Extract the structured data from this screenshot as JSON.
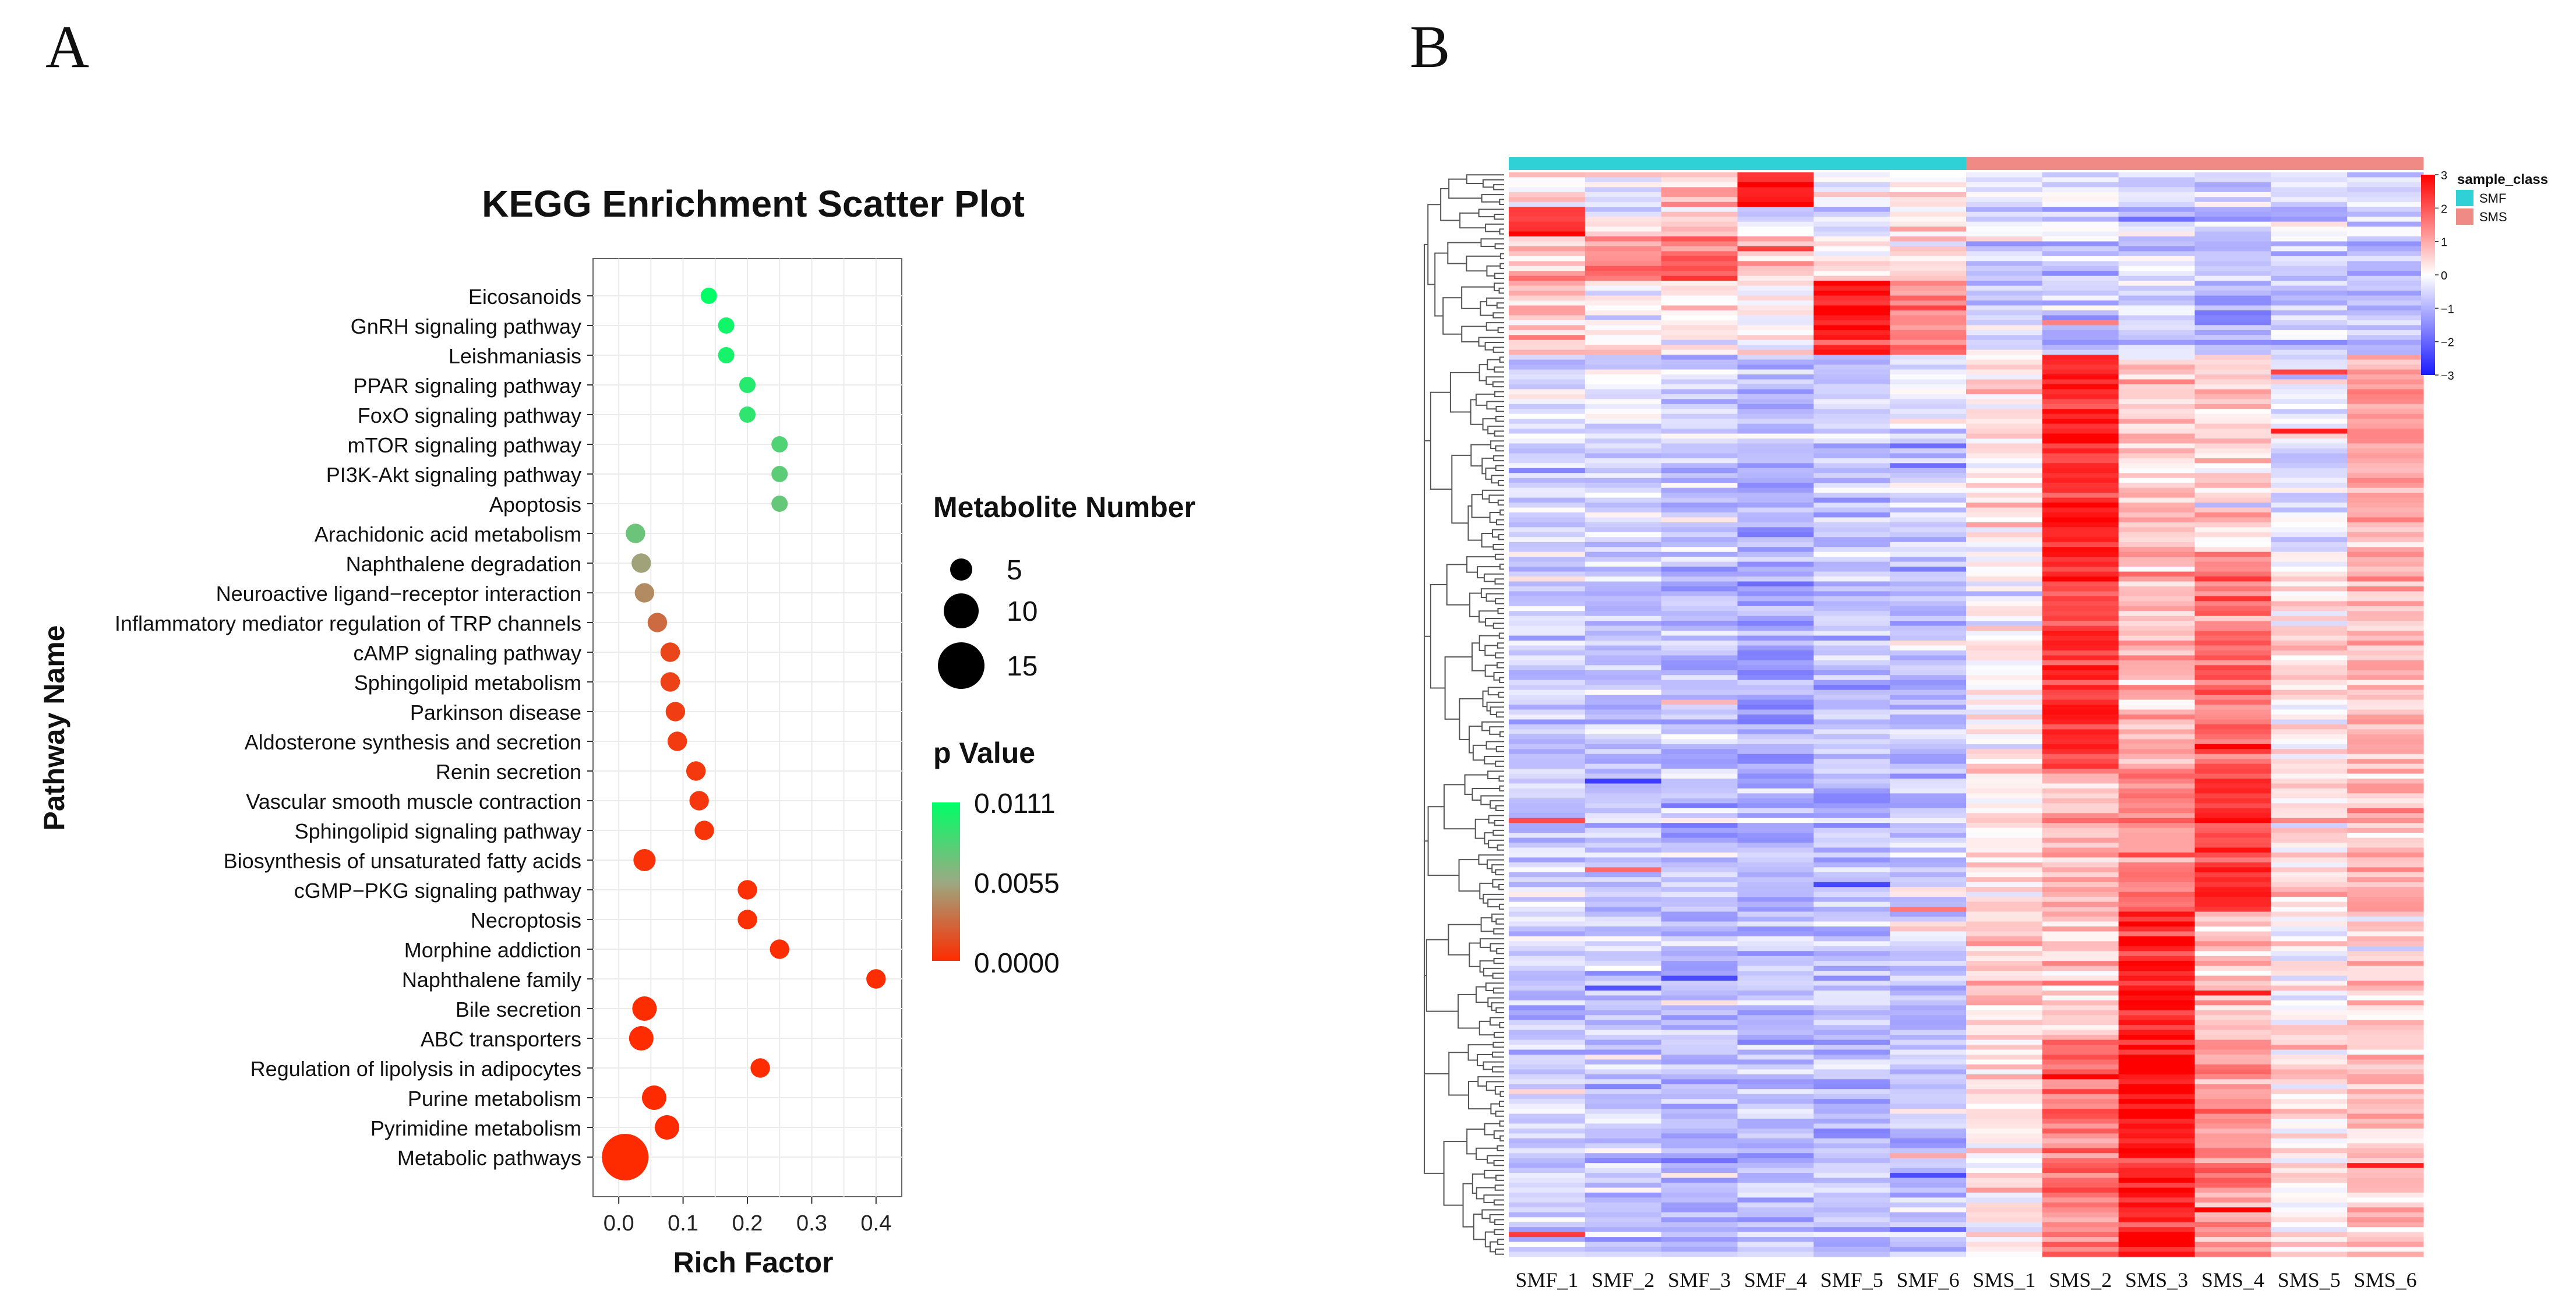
{
  "chart_data": [
    {
      "type": "scatter",
      "panel_label": "A",
      "title": "KEGG Enrichment Scatter Plot",
      "xlabel": "Rich Factor",
      "ylabel": "Pathway Name",
      "xlim": [
        -0.04,
        0.44
      ],
      "x_ticks": [
        "0.0",
        "0.1",
        "0.2",
        "0.3",
        "0.4"
      ],
      "x_tick_values": [
        0.0,
        0.1,
        0.2,
        0.3,
        0.4
      ],
      "grid": true,
      "points": [
        {
          "pathway": "Eicosanoids",
          "rich_factor": 0.14,
          "p_value": 0.0111,
          "count": 2
        },
        {
          "pathway": "GnRH signaling pathway",
          "rich_factor": 0.167,
          "p_value": 0.0105,
          "count": 2
        },
        {
          "pathway": "Leishmaniasis",
          "rich_factor": 0.167,
          "p_value": 0.0103,
          "count": 2
        },
        {
          "pathway": "PPAR signaling pathway",
          "rich_factor": 0.2,
          "p_value": 0.0098,
          "count": 2
        },
        {
          "pathway": "FoxO signaling pathway",
          "rich_factor": 0.2,
          "p_value": 0.0094,
          "count": 2
        },
        {
          "pathway": "mTOR signaling pathway",
          "rich_factor": 0.25,
          "p_value": 0.0082,
          "count": 2
        },
        {
          "pathway": "PI3K-Akt signaling pathway",
          "rich_factor": 0.25,
          "p_value": 0.0078,
          "count": 2
        },
        {
          "pathway": "Apoptosis",
          "rich_factor": 0.25,
          "p_value": 0.0075,
          "count": 2
        },
        {
          "pathway": "Arachidonic acid metabolism",
          "rich_factor": 0.026,
          "p_value": 0.0072,
          "count": 3
        },
        {
          "pathway": "Naphthalene degradation",
          "rich_factor": 0.035,
          "p_value": 0.0052,
          "count": 3
        },
        {
          "pathway": "Neuroactive ligand−receptor interaction",
          "rich_factor": 0.04,
          "p_value": 0.0042,
          "count": 3
        },
        {
          "pathway": "Inflammatory mediator regulation of TRP channels",
          "rich_factor": 0.06,
          "p_value": 0.0028,
          "count": 3
        },
        {
          "pathway": "cAMP signaling pathway",
          "rich_factor": 0.08,
          "p_value": 0.0012,
          "count": 3
        },
        {
          "pathway": "Sphingolipid metabolism",
          "rich_factor": 0.08,
          "p_value": 0.001,
          "count": 3
        },
        {
          "pathway": "Parkinson disease",
          "rich_factor": 0.088,
          "p_value": 0.0008,
          "count": 3
        },
        {
          "pathway": "Aldosterone synthesis and secretion",
          "rich_factor": 0.091,
          "p_value": 0.0007,
          "count": 3
        },
        {
          "pathway": "Renin secretion",
          "rich_factor": 0.12,
          "p_value": 0.0006,
          "count": 3
        },
        {
          "pathway": "Vascular smooth muscle contraction",
          "rich_factor": 0.125,
          "p_value": 0.0005,
          "count": 3
        },
        {
          "pathway": "Sphingolipid signaling pathway",
          "rich_factor": 0.133,
          "p_value": 0.0004,
          "count": 3
        },
        {
          "pathway": "Biosynthesis of unsaturated fatty acids",
          "rich_factor": 0.04,
          "p_value": 0.0003,
          "count": 4
        },
        {
          "pathway": "cGMP−PKG signaling pathway",
          "rich_factor": 0.2,
          "p_value": 0.0002,
          "count": 3
        },
        {
          "pathway": "Necroptosis",
          "rich_factor": 0.2,
          "p_value": 0.0002,
          "count": 3
        },
        {
          "pathway": "Morphine addiction",
          "rich_factor": 0.25,
          "p_value": 0.0001,
          "count": 3
        },
        {
          "pathway": "Naphthalene family",
          "rich_factor": 0.4,
          "p_value": 0.0001,
          "count": 3
        },
        {
          "pathway": "Bile secretion",
          "rich_factor": 0.04,
          "p_value": 0.0001,
          "count": 5
        },
        {
          "pathway": "ABC transporters",
          "rich_factor": 0.035,
          "p_value": 5e-05,
          "count": 5
        },
        {
          "pathway": "Regulation of lipolysis in adipocytes",
          "rich_factor": 0.22,
          "p_value": 5e-05,
          "count": 3
        },
        {
          "pathway": "Purine metabolism",
          "rich_factor": 0.055,
          "p_value": 2e-05,
          "count": 5
        },
        {
          "pathway": "Pyrimidine metabolism",
          "rich_factor": 0.075,
          "p_value": 1e-05,
          "count": 5
        },
        {
          "pathway": "Metabolic pathways",
          "rich_factor": 0.01,
          "p_value": 0.0,
          "count": 20
        }
      ],
      "size_legend": {
        "title": "Metabolite Number",
        "values": [
          5,
          10,
          15
        ],
        "labels": [
          "5",
          "10",
          "15"
        ]
      },
      "color_legend": {
        "title": "p Value",
        "labels": [
          "0.0111",
          "0.0055",
          "0.0000"
        ],
        "range": [
          0.0,
          0.0111
        ],
        "colors": {
          "low": "#ff2b00",
          "mid": "#9aaa82",
          "high": "#00ff66"
        }
      },
      "legend_position": "right"
    },
    {
      "type": "heatmap",
      "panel_label": "B",
      "columns": [
        "SMF_1",
        "SMF_2",
        "SMF_3",
        "SMF_4",
        "SMF_5",
        "SMF_6",
        "SMS_1",
        "SMS_2",
        "SMS_3",
        "SMS_4",
        "SMS_5",
        "SMS_6"
      ],
      "column_groups": [
        "SMF",
        "SMF",
        "SMF",
        "SMF",
        "SMF",
        "SMF",
        "SMS",
        "SMS",
        "SMS",
        "SMS",
        "SMS",
        "SMS"
      ],
      "row_count": 220,
      "color_scale": {
        "min": -3,
        "max": 3,
        "ticks": [
          "3",
          "2",
          "1",
          "0",
          "−1",
          "−2",
          "−3"
        ],
        "low": "#1a1aff",
        "mid": "#ffffff",
        "high": "#ff0000"
      },
      "sample_class_legend": {
        "title": "sample_class",
        "items": [
          {
            "name": "SMF",
            "color": "#2fd0d6"
          },
          {
            "name": "SMS",
            "color": "#f08a84"
          }
        ]
      },
      "row_dendrogram": true,
      "cluster_profiles": [
        {
          "from": 0.0,
          "to": 0.03,
          "means": [
            0.2,
            0.1,
            0.8,
            2.5,
            -0.2,
            0.3,
            -0.4,
            -0.2,
            -0.6,
            -0.6,
            -0.5,
            -0.6
          ]
        },
        {
          "from": 0.03,
          "to": 0.06,
          "means": [
            2.5,
            0.1,
            0.4,
            -0.3,
            -0.5,
            0.1,
            -0.3,
            -0.4,
            -0.5,
            -0.7,
            -0.5,
            -0.6
          ]
        },
        {
          "from": 0.06,
          "to": 0.1,
          "means": [
            0.7,
            1.4,
            1.8,
            0.6,
            0.3,
            0.3,
            -0.5,
            -0.9,
            -0.6,
            -0.8,
            -0.7,
            -0.8
          ]
        },
        {
          "from": 0.1,
          "to": 0.17,
          "means": [
            0.6,
            0.1,
            0.3,
            0.1,
            2.6,
            1.3,
            -0.6,
            -0.8,
            -0.7,
            -0.9,
            -0.7,
            -0.8
          ]
        },
        {
          "from": 0.17,
          "to": 0.35,
          "means": [
            -0.6,
            -0.5,
            -0.7,
            -1.0,
            -0.7,
            -0.6,
            0.3,
            2.6,
            0.6,
            0.5,
            -0.3,
            0.9
          ]
        },
        {
          "from": 0.35,
          "to": 0.55,
          "means": [
            -0.6,
            -0.7,
            -0.9,
            -1.1,
            -0.8,
            -0.7,
            0.2,
            2.4,
            0.8,
            1.8,
            0.4,
            0.8
          ]
        },
        {
          "from": 0.55,
          "to": 0.68,
          "means": [
            -0.6,
            -0.6,
            -0.8,
            -0.9,
            -0.8,
            -0.7,
            0.3,
            0.9,
            1.5,
            2.4,
            0.4,
            0.9
          ]
        },
        {
          "from": 0.68,
          "to": 0.8,
          "means": [
            -0.7,
            -0.6,
            -0.8,
            -0.9,
            -0.8,
            -0.8,
            0.6,
            0.5,
            2.6,
            0.6,
            0.2,
            0.6
          ]
        },
        {
          "from": 0.8,
          "to": 1.0,
          "means": [
            -0.7,
            -0.7,
            -0.8,
            -0.8,
            -0.8,
            -0.7,
            0.3,
            1.5,
            2.8,
            1.3,
            0.3,
            0.7
          ]
        }
      ]
    }
  ]
}
